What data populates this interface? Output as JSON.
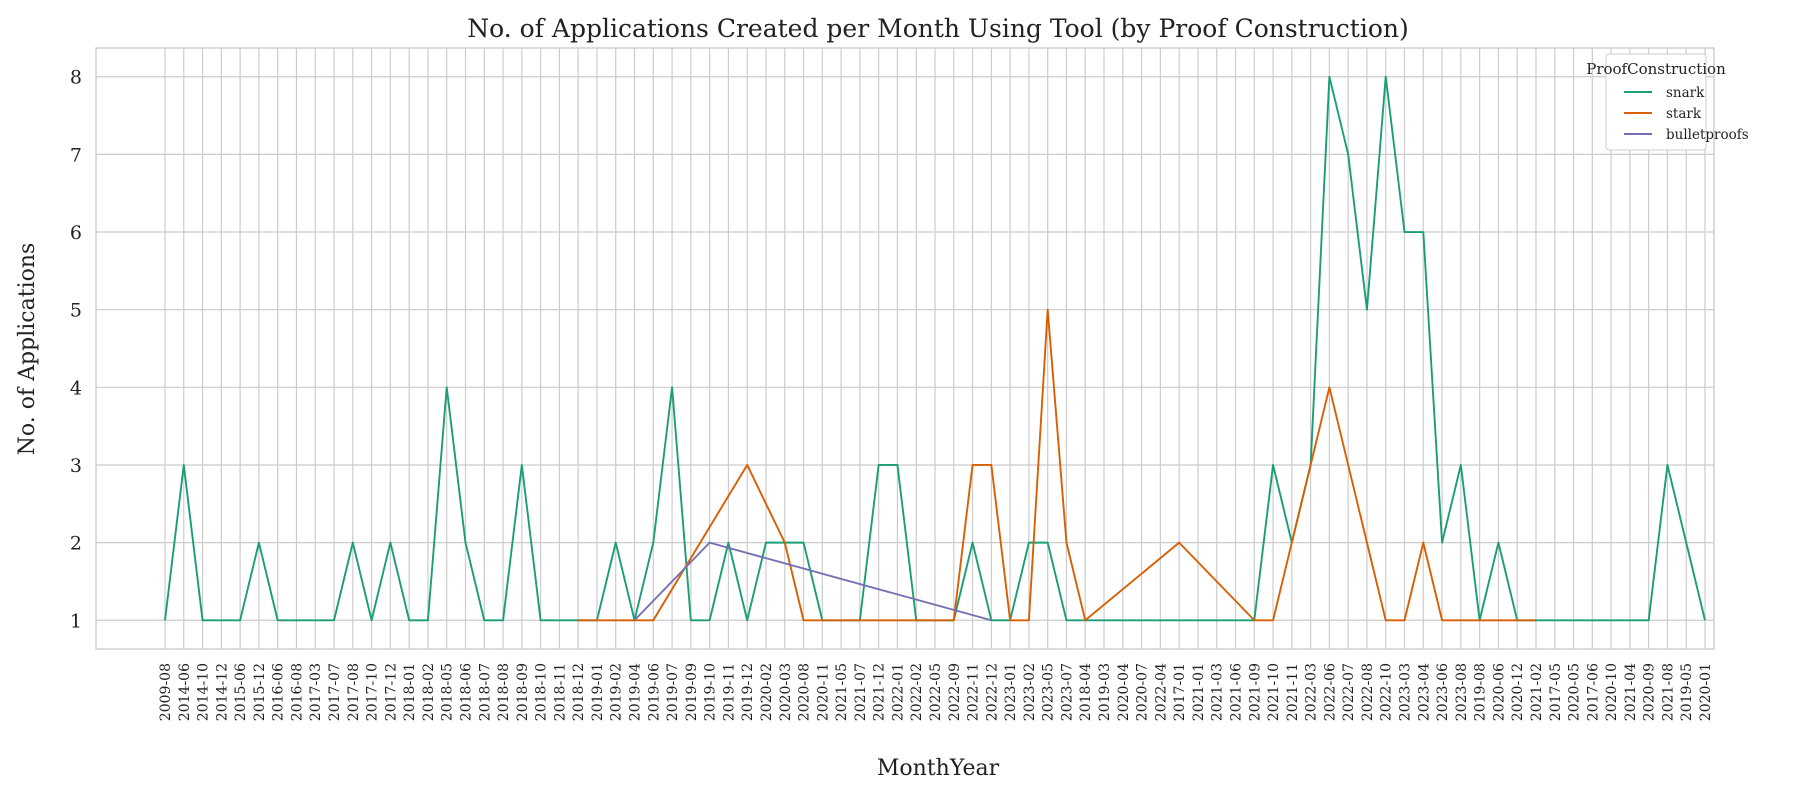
{
  "chart_data": {
    "type": "line",
    "title": "No. of Applications Created per Month Using Tool (by Proof Construction)",
    "xlabel": "MonthYear",
    "ylabel": "No. of Applications",
    "categories": [
      "2009-08",
      "2014-06",
      "2014-10",
      "2014-12",
      "2015-06",
      "2015-12",
      "2016-06",
      "2016-08",
      "2017-03",
      "2017-07",
      "2017-08",
      "2017-10",
      "2017-12",
      "2018-01",
      "2018-02",
      "2018-05",
      "2018-06",
      "2018-07",
      "2018-08",
      "2018-09",
      "2018-10",
      "2018-11",
      "2018-12",
      "2019-01",
      "2019-02",
      "2019-04",
      "2019-06",
      "2019-07",
      "2019-09",
      "2019-10",
      "2019-11",
      "2019-12",
      "2020-02",
      "2020-03",
      "2020-08",
      "2020-11",
      "2021-05",
      "2021-07",
      "2021-12",
      "2022-01",
      "2022-02",
      "2022-05",
      "2022-09",
      "2022-11",
      "2022-12",
      "2023-01",
      "2023-02",
      "2023-05",
      "2023-07",
      "2018-04",
      "2019-03",
      "2020-04",
      "2020-07",
      "2022-04",
      "2017-01",
      "2021-01",
      "2021-03",
      "2021-06",
      "2021-09",
      "2021-10",
      "2021-11",
      "2022-03",
      "2022-06",
      "2022-07",
      "2022-08",
      "2022-10",
      "2023-03",
      "2023-04",
      "2023-06",
      "2023-08",
      "2019-08",
      "2020-06",
      "2020-12",
      "2021-02",
      "2017-05",
      "2020-05",
      "2017-06",
      "2020-10",
      "2021-04",
      "2020-09",
      "2021-08",
      "2019-05",
      "2020-01"
    ],
    "yticks": [
      1,
      2,
      3,
      4,
      5,
      6,
      7,
      8
    ],
    "ylim": [
      0.63,
      8.37
    ],
    "grid": true,
    "legend": {
      "title": "ProofConstruction",
      "placement": "top-right"
    },
    "series": [
      {
        "name": "snark",
        "color": "#1b9e77",
        "values": [
          1,
          3,
          1,
          1,
          1,
          2,
          1,
          1,
          1,
          1,
          2,
          1,
          2,
          1,
          1,
          4,
          2,
          1,
          1,
          3,
          1,
          1,
          1,
          1,
          2,
          1,
          2,
          4,
          1,
          1,
          2,
          1,
          2,
          2,
          2,
          1,
          1,
          1,
          3,
          3,
          1,
          1,
          1,
          2,
          1,
          1,
          2,
          2,
          1,
          1,
          1,
          1,
          1,
          1,
          1,
          1,
          1,
          1,
          1,
          3,
          2,
          3,
          8,
          7,
          5,
          8,
          6,
          6,
          2,
          3,
          1,
          2,
          1,
          1,
          1,
          1,
          1,
          1,
          1,
          1,
          3,
          2,
          1
        ]
      },
      {
        "name": "stark",
        "color": "#d95f02",
        "points": [
          {
            "x": "2018-12",
            "y": 1
          },
          {
            "x": "2019-01",
            "y": 1
          },
          {
            "x": "2019-02",
            "y": 1
          },
          {
            "x": "2019-04",
            "y": 1
          },
          {
            "x": "2019-06",
            "y": 1
          },
          {
            "x": "2019-12",
            "y": 3
          },
          {
            "x": "2020-03",
            "y": 2
          },
          {
            "x": "2020-08",
            "y": 1
          },
          {
            "x": "2020-11",
            "y": 1
          },
          {
            "x": "2021-05",
            "y": 1
          },
          {
            "x": "2021-07",
            "y": 1
          },
          {
            "x": "2021-12",
            "y": 1
          },
          {
            "x": "2022-01",
            "y": 1
          },
          {
            "x": "2022-02",
            "y": 1
          },
          {
            "x": "2022-05",
            "y": 1
          },
          {
            "x": "2022-09",
            "y": 1
          },
          {
            "x": "2022-11",
            "y": 3
          },
          {
            "x": "2022-12",
            "y": 3
          },
          {
            "x": "2023-01",
            "y": 1
          },
          {
            "x": "2023-02",
            "y": 1
          },
          {
            "x": "2023-05",
            "y": 5
          },
          {
            "x": "2023-07",
            "y": 2
          },
          {
            "x": "2018-04",
            "y": 1
          },
          {
            "x": "2017-01",
            "y": 2
          },
          {
            "x": "2021-09",
            "y": 1
          },
          {
            "x": "2021-10",
            "y": 1
          },
          {
            "x": "2022-03",
            "y": 3
          },
          {
            "x": "2022-06",
            "y": 4
          },
          {
            "x": "2022-08",
            "y": 2
          },
          {
            "x": "2022-10",
            "y": 1
          },
          {
            "x": "2023-03",
            "y": 1
          },
          {
            "x": "2023-04",
            "y": 2
          },
          {
            "x": "2023-06",
            "y": 1
          },
          {
            "x": "2023-08",
            "y": 1
          },
          {
            "x": "2019-08",
            "y": 1
          },
          {
            "x": "2020-06",
            "y": 1
          },
          {
            "x": "2020-12",
            "y": 1
          },
          {
            "x": "2021-02",
            "y": 1
          }
        ]
      },
      {
        "name": "bulletproofs",
        "color": "#7570b3",
        "points": [
          {
            "x": "2019-04",
            "y": 1
          },
          {
            "x": "2019-10",
            "y": 2
          },
          {
            "x": "2022-12",
            "y": 1
          }
        ]
      }
    ]
  }
}
